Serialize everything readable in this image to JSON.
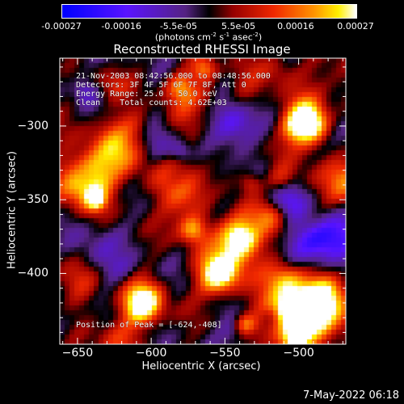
{
  "colorbar": {
    "ticks": [
      "-0.00027",
      "-0.00016",
      "-5.5e-05",
      "5.5e-05",
      "0.00016",
      "0.00027"
    ],
    "tick_values": [
      -0.00027,
      -0.00016,
      -5.5e-05,
      5.5e-05,
      0.00016,
      0.00027
    ],
    "range": [
      -0.00027,
      0.00027
    ],
    "unit_prefix": "(photons cm",
    "unit_sup1": "-2",
    "unit_mid": " s",
    "unit_sup2": "-1",
    "unit_mid2": " asec",
    "unit_sup3": "-2",
    "unit_suffix": ")"
  },
  "chart_data": {
    "type": "heatmap",
    "title": "Reconstructed RHESSI Image",
    "xlabel": "Heliocentric X (arcsec)",
    "ylabel": "Heliocentric Y (arcsec)",
    "xlim": [
      -662,
      -468
    ],
    "ylim": [
      -448,
      -254
    ],
    "xticks": [
      -650,
      -600,
      -550,
      -500
    ],
    "yticks": [
      -300,
      -350,
      -400
    ],
    "xtick_labels": [
      "−650",
      "−600",
      "−550",
      "−500"
    ],
    "ytick_labels": [
      "−300",
      "−350",
      "−400"
    ],
    "colormap": "rainbow-with-black-at-zero",
    "peak": [
      -624,
      -408
    ],
    "grid": false
  },
  "annotations": {
    "time": "21-Nov-2003 08:42:56.000 to 08:48:56.000",
    "detectors": "Detectors: 3F 4F 5F 6F 7F 8F, Att 0",
    "energy": "Energy Range: 25.0 - 50.0 keV",
    "clean": "Clean    Total counts: 4.62E+03",
    "peak": "Position of Peak = [-624,-408]"
  },
  "footer": {
    "date": "7-May-2022 06:18"
  }
}
